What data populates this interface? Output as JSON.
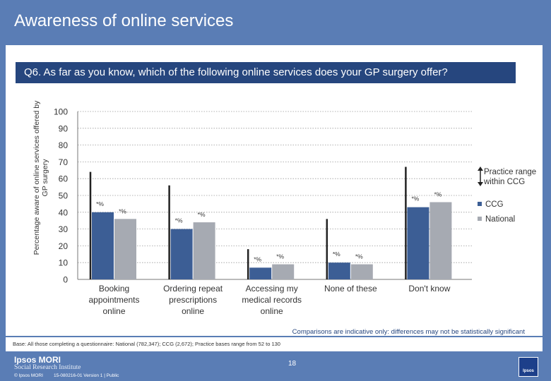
{
  "page": {
    "title": "Awareness of online services",
    "question": "Q6. As far as you know, which of the following online services does your GP surgery offer?",
    "footnote": "Comparisons are indicative only: differences may not be statistically significant",
    "base": "Base: All those completing a questionnaire: National (782,347); CCG (2,672); Practice bases range from 52 to 130",
    "page_number": "18",
    "brand_name": "Ipsos MORI",
    "brand_sub": "Social Research Institute",
    "copyright": "© Ipsos MORI",
    "job_ref": "15-080216-01 Version 1 | Public",
    "logo_text": "Ipsos",
    "colors": {
      "ccg": "#3c5e95",
      "national": "#a6aab2",
      "header": "#5a7db5",
      "question_band": "#26467e"
    }
  },
  "chart_data": {
    "type": "bar",
    "title": "Awareness of online services",
    "ylabel": "Percentage aware of online services offered by GP surgery",
    "xlabel": "",
    "ylim": [
      0,
      100
    ],
    "yticks": [
      0,
      10,
      20,
      30,
      40,
      50,
      60,
      70,
      80,
      90,
      100
    ],
    "categories": [
      [
        "Booking",
        "appointments",
        "online"
      ],
      [
        "Ordering repeat",
        "prescriptions",
        "online"
      ],
      [
        "Accessing my",
        "medical records",
        "online"
      ],
      [
        "None of these"
      ],
      [
        "Don't know"
      ]
    ],
    "series": [
      {
        "name": "CCG",
        "values": [
          40,
          30,
          7,
          10,
          43
        ],
        "labels": [
          "*%",
          "*%",
          "*%",
          "*%",
          "*%"
        ]
      },
      {
        "name": "National",
        "values": [
          36,
          34,
          9,
          9,
          46
        ],
        "labels": [
          "*%",
          "*%",
          "*%",
          "*%",
          "*%"
        ]
      }
    ],
    "practice_range": [
      [
        0,
        64
      ],
      [
        0,
        56
      ],
      [
        0,
        18
      ],
      [
        0,
        36
      ],
      [
        0,
        67
      ]
    ],
    "legend": {
      "range_label": [
        "Practice range",
        "within CCG"
      ],
      "ccg_label": "CCG",
      "national_label": "National"
    },
    "grid": true
  }
}
